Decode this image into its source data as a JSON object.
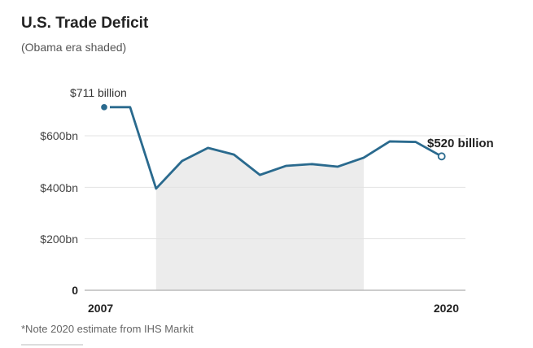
{
  "chart_data": {
    "type": "line",
    "title": "U.S. Trade Deficit",
    "subtitle": "(Obama era shaded)",
    "xlabel": "",
    "ylabel": "",
    "x": [
      2007,
      2008,
      2009,
      2010,
      2011,
      2012,
      2013,
      2014,
      2015,
      2016,
      2017,
      2018,
      2019,
      2020
    ],
    "series": [
      {
        "name": "U.S. Trade Deficit ($bn)",
        "values": [
          711,
          711,
          395,
          502,
          553,
          527,
          448,
          483,
          490,
          480,
          515,
          578,
          576,
          520
        ]
      }
    ],
    "ylim": [
      0,
      711
    ],
    "yticks": [
      0,
      200,
      400,
      600
    ],
    "ytick_labels": [
      "0",
      "$200bn",
      "$400bn",
      "$600bn"
    ],
    "xtick_labels": [
      "2007",
      "2020"
    ],
    "shaded_range": [
      2009,
      2017
    ],
    "shaded_label": "Obama era",
    "annotations": [
      {
        "x": 2007,
        "text": "$711 billion"
      },
      {
        "x": 2020,
        "text": "$520 billion"
      }
    ],
    "grid": true,
    "line_color": "#2a6a8e",
    "shade_color": "#ececec",
    "note": "*Note 2020 estimate from IHS Markit"
  }
}
